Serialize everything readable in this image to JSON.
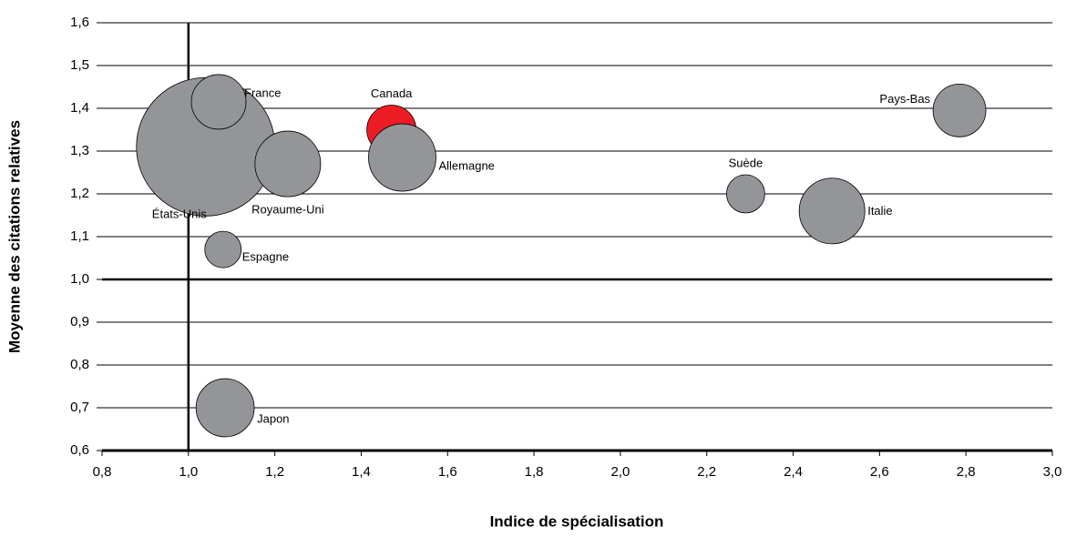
{
  "chart_data": {
    "type": "bubble",
    "x_label": "Indice de spécialisation",
    "y_label": "Moyenne des citations relatives",
    "labels": [
      "États-Unis",
      "France",
      "Canada",
      "Allemagne",
      "Royaume-Uni",
      "Espagne",
      "Japon",
      "Suède",
      "Italie",
      "Pays-Bas"
    ],
    "x": [
      1.04,
      1.07,
      1.47,
      1.495,
      1.23,
      1.08,
      1.085,
      2.29,
      2.49,
      2.785
    ],
    "values": [
      1.31,
      1.415,
      1.35,
      1.285,
      1.27,
      1.07,
      0.7,
      1.2,
      1.16,
      1.395
    ],
    "sizes": [
      578,
      90,
      73,
      137,
      130,
      40,
      102,
      44,
      130,
      84
    ],
    "colors": [
      "#939598",
      "#939598",
      "#ed1c24",
      "#939598",
      "#939598",
      "#939598",
      "#939598",
      "#939598",
      "#939598",
      "#939598"
    ],
    "xlim": [
      0.8,
      3.0
    ],
    "ylim": [
      0.6,
      1.6
    ],
    "xticks": [
      {
        "value": 0.8,
        "label": "0,8"
      },
      {
        "value": 1.0,
        "label": "1,0"
      },
      {
        "value": 1.2,
        "label": "1,2"
      },
      {
        "value": 1.4,
        "label": "1,4"
      },
      {
        "value": 1.6,
        "label": "1,6"
      },
      {
        "value": 1.8,
        "label": "1,8"
      },
      {
        "value": 2.0,
        "label": "2,0"
      },
      {
        "value": 2.2,
        "label": "2,2"
      },
      {
        "value": 2.4,
        "label": "2,4"
      },
      {
        "value": 2.6,
        "label": "2,6"
      },
      {
        "value": 2.8,
        "label": "2,8"
      },
      {
        "value": 3.0,
        "label": "3,0"
      }
    ],
    "yticks": [
      {
        "value": 0.6,
        "label": "0,6"
      },
      {
        "value": 0.7,
        "label": "0,7"
      },
      {
        "value": 0.8,
        "label": "0,8"
      },
      {
        "value": 0.9,
        "label": "0,9"
      },
      {
        "value": 1.0,
        "label": "1,0"
      },
      {
        "value": 1.1,
        "label": "1,1"
      },
      {
        "value": 1.2,
        "label": "1,2"
      },
      {
        "value": 1.3,
        "label": "1,3"
      },
      {
        "value": 1.4,
        "label": "1,4"
      },
      {
        "value": 1.5,
        "label": "1,5"
      },
      {
        "value": 1.6,
        "label": "1,6"
      }
    ],
    "grid": true,
    "crosshair": {
      "x": 1.0,
      "y": 1.0
    }
  }
}
